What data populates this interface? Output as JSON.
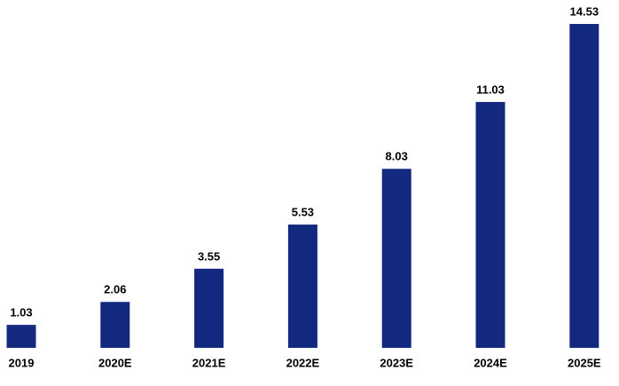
{
  "chart_data": {
    "type": "bar",
    "categories": [
      "2019",
      "2020E",
      "2021E",
      "2022E",
      "2023E",
      "2024E",
      "2025E"
    ],
    "values": [
      1.03,
      2.06,
      3.55,
      5.53,
      8.03,
      11.03,
      14.53
    ],
    "color": "#13287f"
  }
}
